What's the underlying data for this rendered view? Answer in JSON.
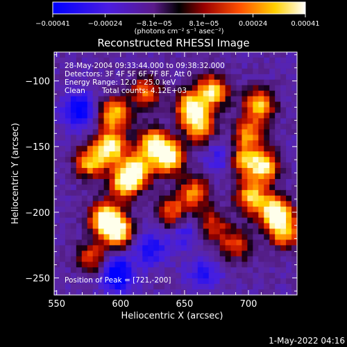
{
  "chart_data": {
    "type": "heatmap",
    "title": "Reconstructed RHESSI Image",
    "xlabel": "Heliocentric X (arcsec)",
    "ylabel": "Heliocentric Y (arcsec)",
    "xlim": [
      548,
      738
    ],
    "ylim": [
      -263,
      -78
    ],
    "x_ticks": [
      550,
      600,
      650,
      700
    ],
    "y_ticks": [
      -100,
      -150,
      -200,
      -250
    ],
    "y_tick_labels": [
      "−100",
      "−150",
      "−200",
      "−250"
    ],
    "colorbar": {
      "range": [
        -0.00041,
        0.00041
      ],
      "tick_values": [
        -0.00041,
        -0.00024,
        -8.1e-05,
        8.1e-05,
        0.00024,
        0.00041
      ],
      "tick_labels": [
        "−0.00041",
        "−0.00024",
        "−8.1e−05",
        "8.1e−05",
        "0.00024",
        "0.00041"
      ],
      "unit_label": "(photons cm⁻² s⁻¹ asec⁻²)",
      "colormap": "blue-purple-black-red-yellow-white"
    },
    "annotations": {
      "time": "28-May-2004 09:33:44.000 to 09:38:32.000",
      "detectors": "Detectors: 3F 4F 5F 6F 7F 8F, Att 0",
      "energy": "Energy Range: 12.0 - 25.0 keV",
      "clean_label": "Clean",
      "counts": "Total counts: 4.12E+03",
      "peak": "Position of Peak = [721,-200]"
    },
    "intensity_clusters": [
      {
        "x": 595,
        "y": -125,
        "level": 0.75
      },
      {
        "x": 592,
        "y": -150,
        "level": 0.9
      },
      {
        "x": 576,
        "y": -162,
        "level": 0.7
      },
      {
        "x": 620,
        "y": -108,
        "level": 0.55
      },
      {
        "x": 625,
        "y": -148,
        "level": 0.8
      },
      {
        "x": 638,
        "y": -158,
        "level": 0.95
      },
      {
        "x": 655,
        "y": -120,
        "level": 0.85
      },
      {
        "x": 662,
        "y": -135,
        "level": 0.7
      },
      {
        "x": 672,
        "y": -108,
        "level": 0.8
      },
      {
        "x": 612,
        "y": -168,
        "level": 0.85
      },
      {
        "x": 603,
        "y": -178,
        "level": 0.75
      },
      {
        "x": 658,
        "y": -185,
        "level": 0.6
      },
      {
        "x": 640,
        "y": -200,
        "level": 0.55
      },
      {
        "x": 588,
        "y": -205,
        "level": 0.95
      },
      {
        "x": 598,
        "y": -215,
        "level": 0.85
      },
      {
        "x": 578,
        "y": -235,
        "level": 0.5
      },
      {
        "x": 708,
        "y": -118,
        "level": 0.75
      },
      {
        "x": 700,
        "y": -140,
        "level": 0.6
      },
      {
        "x": 712,
        "y": -165,
        "level": 0.85
      },
      {
        "x": 694,
        "y": -160,
        "level": 0.7
      },
      {
        "x": 702,
        "y": -188,
        "level": 0.75
      },
      {
        "x": 721,
        "y": -200,
        "level": 1.0
      },
      {
        "x": 728,
        "y": -215,
        "level": 0.7
      },
      {
        "x": 690,
        "y": -225,
        "level": 0.5
      },
      {
        "x": 672,
        "y": -210,
        "level": 0.45
      }
    ],
    "minimum_clusters": [
      {
        "x": 568,
        "y": -122,
        "level": 0.7
      },
      {
        "x": 682,
        "y": -158,
        "level": 0.5
      },
      {
        "x": 623,
        "y": -228,
        "level": 0.5
      },
      {
        "x": 598,
        "y": -250,
        "level": 0.45
      },
      {
        "x": 595,
        "y": -243,
        "level": 0.4
      },
      {
        "x": 650,
        "y": -215,
        "level": 0.35
      },
      {
        "x": 665,
        "y": -247,
        "level": 0.4
      }
    ]
  },
  "footer": {
    "timestamp": "1-May-2022 04:16"
  }
}
